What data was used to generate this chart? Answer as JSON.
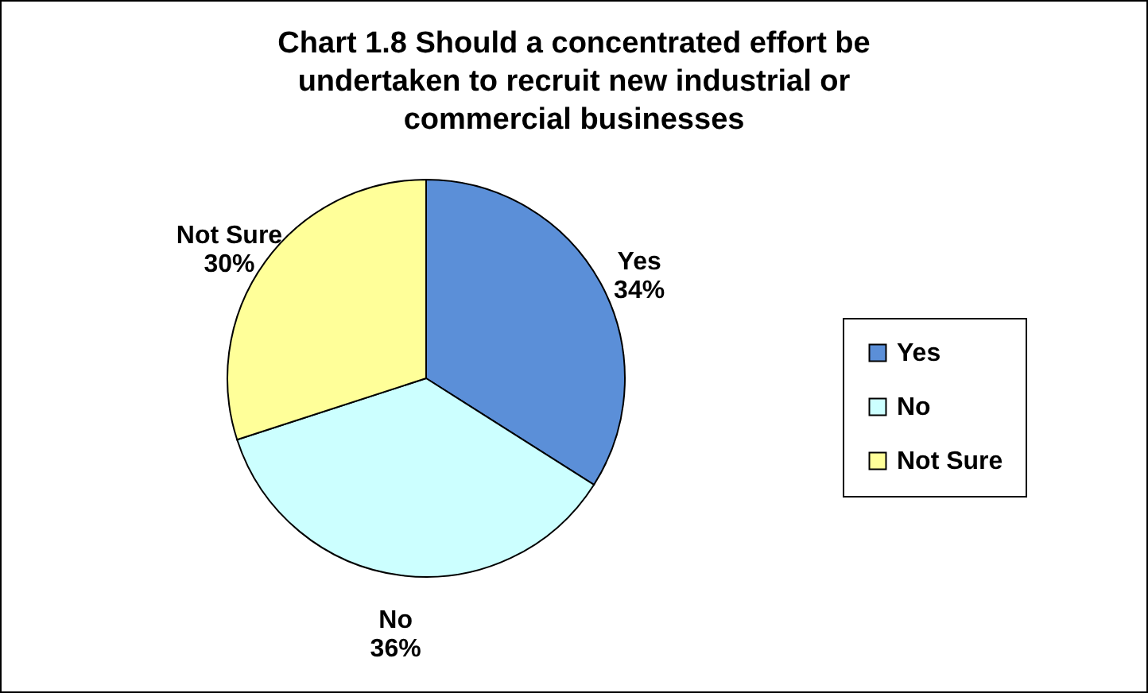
{
  "chart_data": {
    "type": "pie",
    "title": "Chart 1.8 Should a concentrated effort be undertaken to recruit new  industrial or commercial businesses",
    "categories": [
      "Yes",
      "No",
      "Not Sure"
    ],
    "values": [
      34,
      36,
      30
    ],
    "value_labels": [
      "34%",
      "36%",
      "30%"
    ],
    "colors": [
      "#5b8fd8",
      "#ccffff",
      "#ffff99"
    ],
    "legend": "right"
  }
}
